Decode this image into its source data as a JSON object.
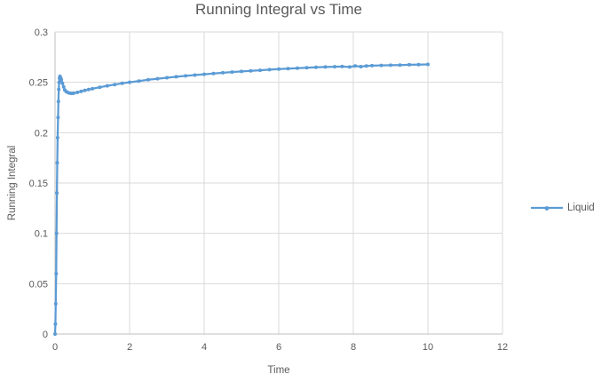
{
  "chart_data": {
    "type": "line",
    "title": "Running Integral vs Time",
    "xlabel": "Time",
    "ylabel": "Running Integral",
    "xlim": [
      0,
      12
    ],
    "ylim": [
      0,
      0.3
    ],
    "x_ticks": [
      0,
      2,
      4,
      6,
      8,
      10,
      12
    ],
    "y_ticks": [
      0,
      0.05,
      0.1,
      0.15,
      0.2,
      0.25,
      0.3
    ],
    "y_tick_labels": [
      "0",
      "0.05",
      "0.1",
      "0.15",
      "0.2",
      "0.25",
      "0.3"
    ],
    "grid": true,
    "legend_position": "right",
    "series": [
      {
        "name": "Liquid",
        "color": "#5B9BD5",
        "marker": "circle",
        "points": [
          [
            0,
            0
          ],
          [
            0.01,
            0.01
          ],
          [
            0.02,
            0.03
          ],
          [
            0.03,
            0.06
          ],
          [
            0.04,
            0.1
          ],
          [
            0.05,
            0.14
          ],
          [
            0.06,
            0.17
          ],
          [
            0.07,
            0.195
          ],
          [
            0.08,
            0.215
          ],
          [
            0.09,
            0.231
          ],
          [
            0.1,
            0.243
          ],
          [
            0.11,
            0.25
          ],
          [
            0.12,
            0.254
          ],
          [
            0.13,
            0.256
          ],
          [
            0.15,
            0.2545
          ],
          [
            0.17,
            0.2525
          ],
          [
            0.2,
            0.249
          ],
          [
            0.23,
            0.2455
          ],
          [
            0.26,
            0.2425
          ],
          [
            0.3,
            0.2408
          ],
          [
            0.35,
            0.2398
          ],
          [
            0.4,
            0.2392
          ],
          [
            0.45,
            0.239
          ],
          [
            0.5,
            0.2392
          ],
          [
            0.6,
            0.24
          ],
          [
            0.7,
            0.241
          ],
          [
            0.8,
            0.242
          ],
          [
            0.9,
            0.2428
          ],
          [
            1.0,
            0.2436
          ],
          [
            1.2,
            0.2451
          ],
          [
            1.4,
            0.2465
          ],
          [
            1.6,
            0.2478
          ],
          [
            1.8,
            0.249
          ],
          [
            2.0,
            0.2501
          ],
          [
            2.25,
            0.2513
          ],
          [
            2.5,
            0.2525
          ],
          [
            2.75,
            0.2536
          ],
          [
            3.0,
            0.2546
          ],
          [
            3.25,
            0.2555
          ],
          [
            3.5,
            0.2564
          ],
          [
            3.75,
            0.2572
          ],
          [
            4.0,
            0.258
          ],
          [
            4.25,
            0.2588
          ],
          [
            4.5,
            0.2595
          ],
          [
            4.75,
            0.2602
          ],
          [
            5.0,
            0.2608
          ],
          [
            5.25,
            0.2614
          ],
          [
            5.5,
            0.262
          ],
          [
            5.75,
            0.2626
          ],
          [
            6.0,
            0.2631
          ],
          [
            6.25,
            0.2636
          ],
          [
            6.5,
            0.2641
          ],
          [
            6.75,
            0.2645
          ],
          [
            7.0,
            0.2649
          ],
          [
            7.25,
            0.2652
          ],
          [
            7.5,
            0.2655
          ],
          [
            7.7,
            0.2657
          ],
          [
            7.9,
            0.2652
          ],
          [
            8.05,
            0.2662
          ],
          [
            8.2,
            0.2656
          ],
          [
            8.35,
            0.2663
          ],
          [
            8.5,
            0.2666
          ],
          [
            8.75,
            0.2668
          ],
          [
            9.0,
            0.267
          ],
          [
            9.25,
            0.2672
          ],
          [
            9.5,
            0.2674
          ],
          [
            9.75,
            0.2676
          ],
          [
            10.0,
            0.2678
          ]
        ]
      }
    ]
  },
  "legend": {
    "label": "Liquid"
  },
  "colors": {
    "background": "#FFFFFF",
    "gridline": "#D9D9D9",
    "axis_line": "#BFBFBF",
    "text": "#595959",
    "series_blue": "#5B9BD5"
  }
}
